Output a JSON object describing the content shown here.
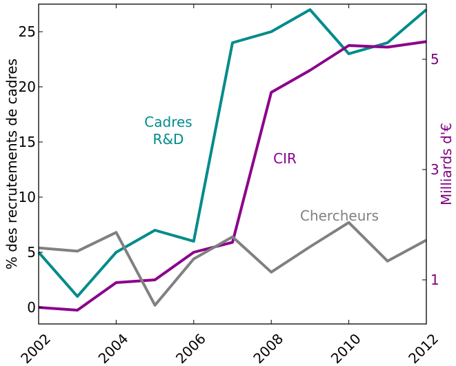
{
  "chart_data": {
    "type": "line",
    "x": [
      2002,
      2003,
      2004,
      2005,
      2006,
      2007,
      2008,
      2009,
      2010,
      2011,
      2012
    ],
    "x_ticks": [
      2002,
      2004,
      2006,
      2008,
      2010,
      2012
    ],
    "xlim": [
      2002,
      2012
    ],
    "left_axis": {
      "label": "% des recrutements de cadres",
      "ylim": [
        -1.5,
        27.5
      ],
      "ticks": [
        0,
        5,
        10,
        15,
        20,
        25
      ]
    },
    "right_axis": {
      "label": "Milliards d'€",
      "ylim": [
        0.2,
        6
      ],
      "ticks": [
        1,
        3,
        5
      ],
      "color": "#800080"
    },
    "series": [
      {
        "name": "Cadres R&D",
        "annotation_lines": [
          "Cadres",
          "R&D"
        ],
        "axis": "left",
        "color": "#008b8b",
        "values": [
          5,
          1,
          5,
          7,
          6,
          24,
          25,
          27,
          23,
          24,
          27
        ]
      },
      {
        "name": "CIR",
        "annotation_lines": [
          "CIR"
        ],
        "axis": "right",
        "color": "#8b008b",
        "values": [
          0.5,
          0.45,
          0.95,
          1.0,
          1.5,
          1.68,
          4.4,
          4.8,
          5.25,
          5.22,
          5.32
        ]
      },
      {
        "name": "Chercheurs",
        "annotation_lines": [
          "Chercheurs"
        ],
        "axis": "left",
        "color": "#808080",
        "values": [
          5.4,
          5.1,
          6.8,
          0.2,
          4.4,
          6.4,
          3.2,
          5.5,
          7.7,
          4.2,
          6.1
        ]
      }
    ],
    "grid": false
  }
}
